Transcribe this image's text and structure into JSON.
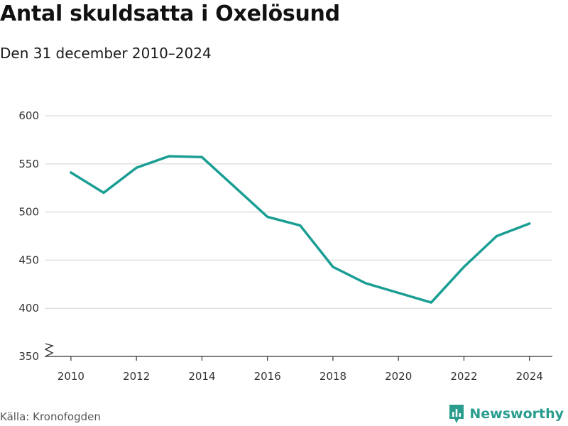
{
  "header": {
    "title": "Antal skuldsatta i Oxelösund",
    "subtitle": "Den 31 december 2010–2024"
  },
  "footer": {
    "source": "Källa: Kronofogden",
    "brand": "Newsworthy"
  },
  "colors": {
    "line": "#1a9e94",
    "grid": "#d9d9d9",
    "axis": "#333333",
    "brand": "#2a9d8f"
  },
  "chart_data": {
    "type": "line",
    "title": "Antal skuldsatta i Oxelösund",
    "subtitle": "Den 31 december 2010–2024",
    "xlabel": "",
    "ylabel": "",
    "x": [
      2010,
      2011,
      2012,
      2013,
      2014,
      2015,
      2016,
      2017,
      2018,
      2019,
      2020,
      2021,
      2022,
      2023,
      2024
    ],
    "series": [
      {
        "values": [
          541,
          520,
          546,
          558,
          557,
          526,
          495,
          486,
          443,
          426,
          416,
          406,
          443,
          475,
          488
        ]
      }
    ],
    "xlim": [
      2009.2,
      2024.7
    ],
    "ylim": [
      350,
      600
    ],
    "yticks": [
      350,
      400,
      450,
      500,
      550,
      600
    ],
    "xticks": [
      2010,
      2012,
      2014,
      2016,
      2018,
      2020,
      2022,
      2024
    ],
    "y_axis_break": true,
    "grid": true,
    "legend": "none"
  }
}
